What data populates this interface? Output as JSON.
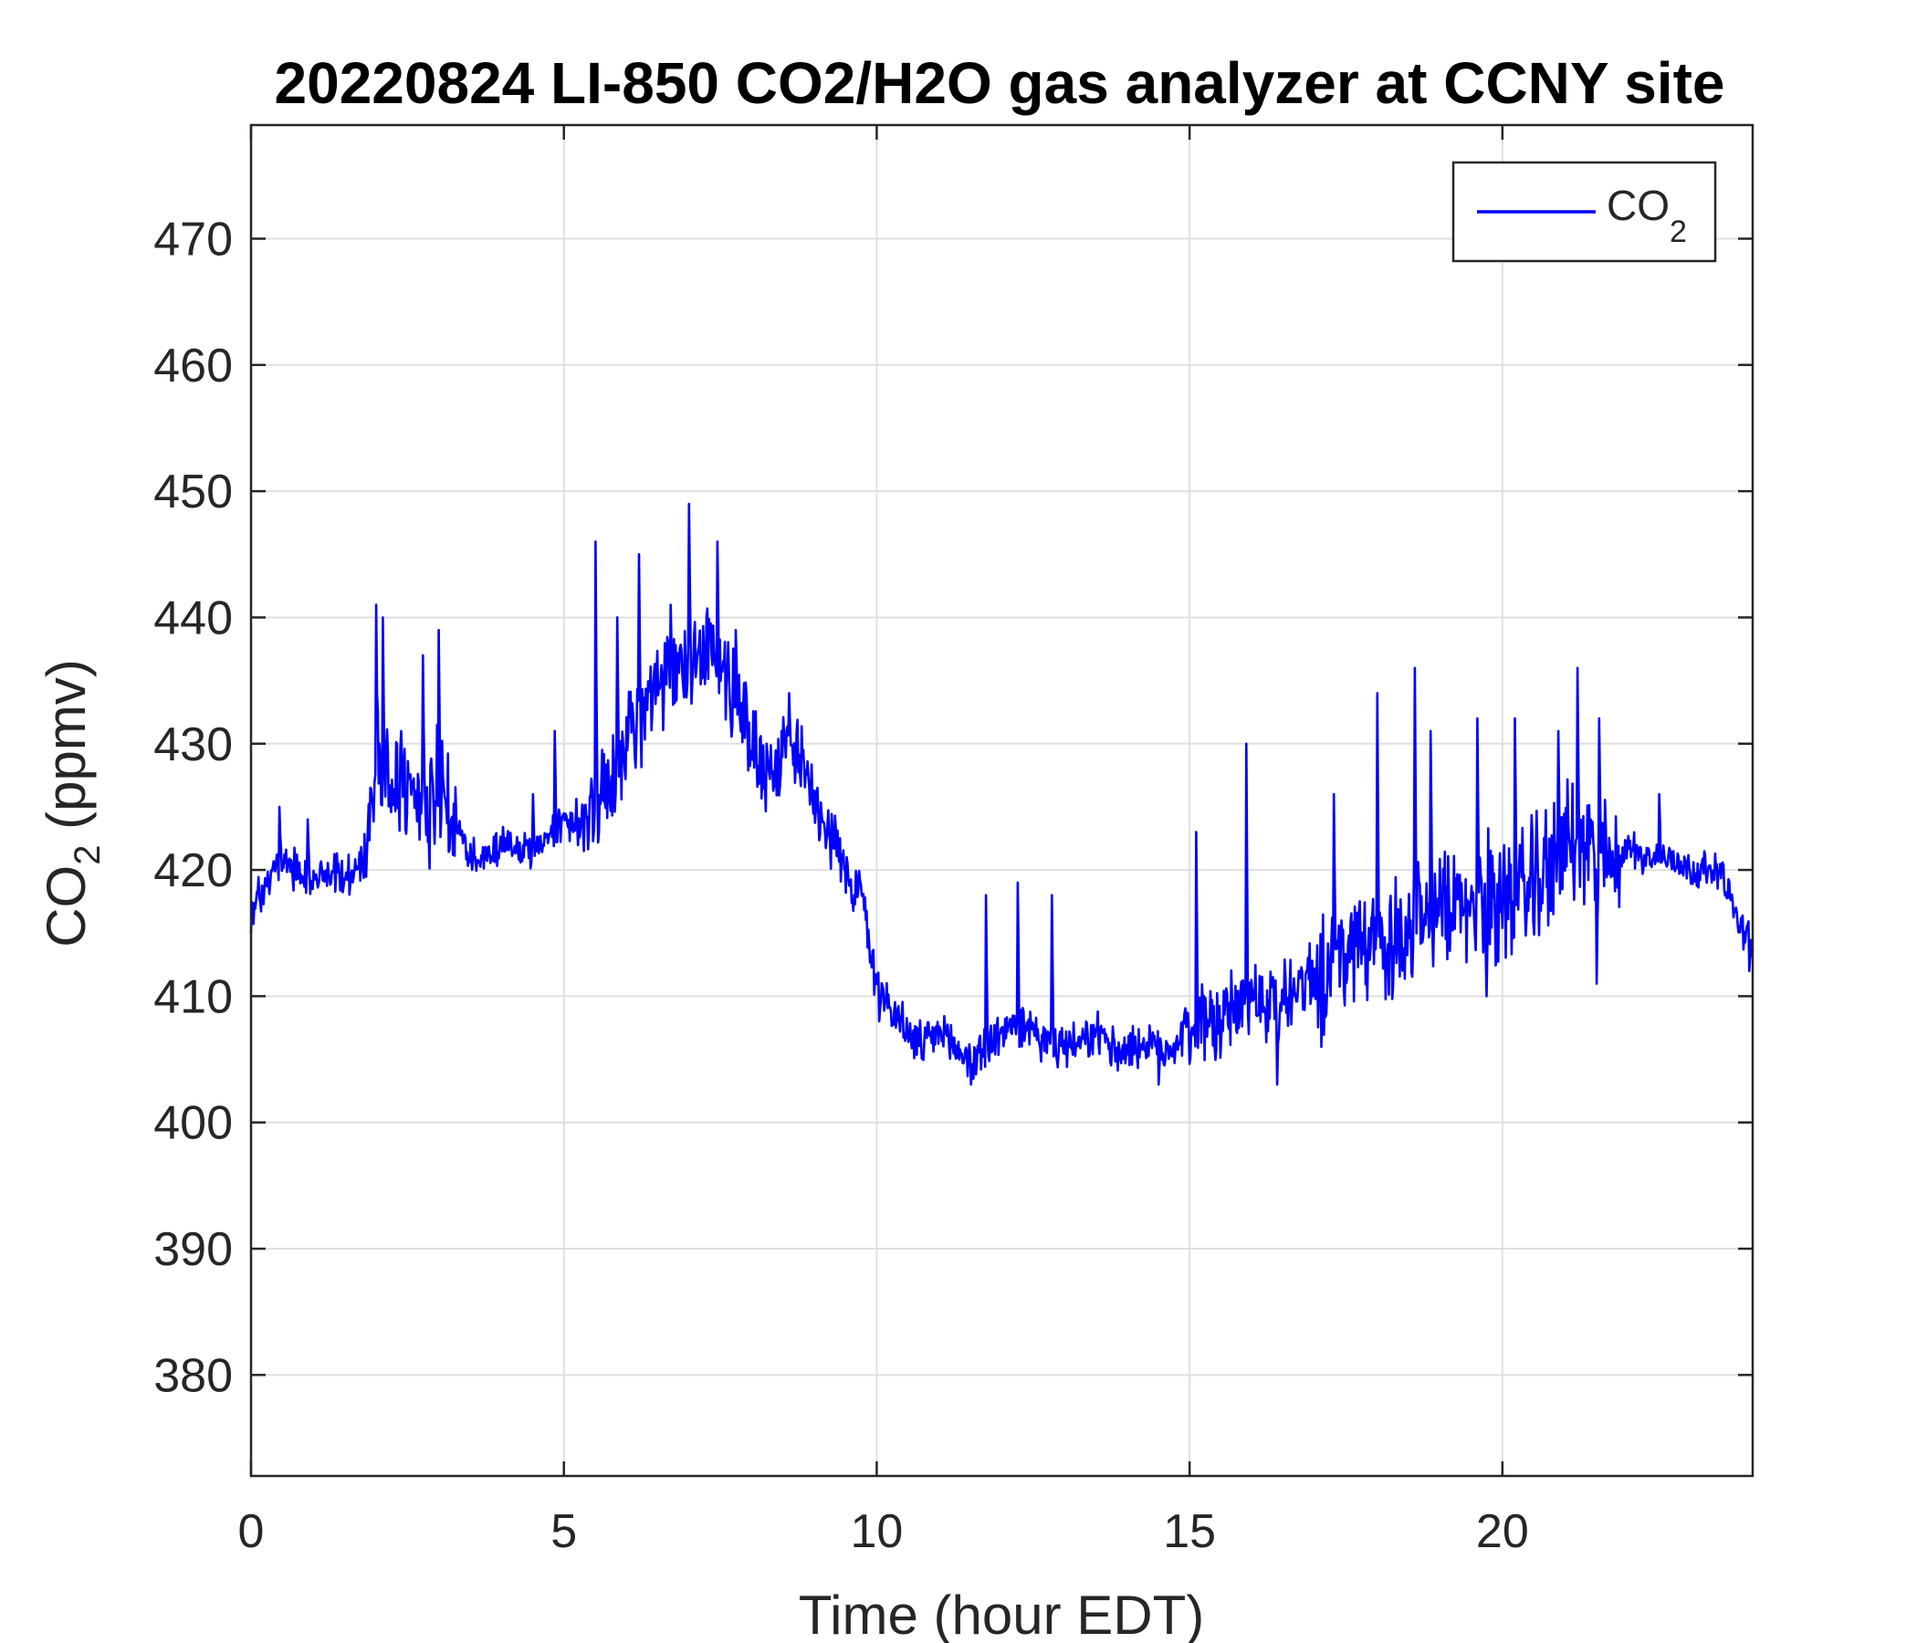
{
  "chart_data": {
    "type": "line",
    "title": "20220824 LI-850 CO2/H2O gas analyzer at CCNY site",
    "xlabel": "Time (hour EDT)",
    "ylabel": {
      "main": "CO",
      "sub": "2",
      "suffix": " (ppmv)"
    },
    "xlim": [
      0,
      24
    ],
    "ylim": [
      372,
      479
    ],
    "xticks": [
      0,
      5,
      10,
      15,
      20
    ],
    "yticks": [
      380,
      390,
      400,
      410,
      420,
      430,
      440,
      450,
      460,
      470
    ],
    "grid": true,
    "legend": {
      "position": "top-right",
      "entries": [
        {
          "main": "CO",
          "sub": "2"
        }
      ]
    },
    "series": [
      {
        "name": "CO2",
        "color": "#0000ff",
        "x": [
          0,
          0.25,
          0.5,
          0.75,
          1,
          1.25,
          1.5,
          1.75,
          2,
          2.25,
          2.5,
          2.75,
          3,
          3.25,
          3.5,
          3.75,
          4,
          4.25,
          4.5,
          4.75,
          5,
          5.25,
          5.5,
          5.75,
          6,
          6.25,
          6.5,
          6.75,
          7,
          7.25,
          7.5,
          7.75,
          8,
          8.25,
          8.5,
          8.75,
          9,
          9.25,
          9.5,
          9.75,
          10,
          10.25,
          10.5,
          10.75,
          11,
          11.25,
          11.5,
          11.75,
          12,
          12.25,
          12.5,
          12.75,
          13,
          13.25,
          13.5,
          13.75,
          14,
          14.25,
          14.5,
          14.75,
          15,
          15.25,
          15.5,
          15.75,
          16,
          16.25,
          16.5,
          16.75,
          17,
          17.25,
          17.5,
          17.75,
          18,
          18.25,
          18.5,
          18.75,
          19,
          19.25,
          19.5,
          19.75,
          20,
          20.25,
          20.5,
          20.75,
          21,
          21.25,
          21.5,
          21.75,
          22,
          22.25,
          22.5,
          22.75,
          23,
          23.25,
          23.5,
          23.75,
          24
        ],
        "y": [
          416,
          419,
          421,
          420,
          419,
          420,
          419,
          420,
          427,
          428,
          426,
          425,
          426,
          424,
          421,
          421,
          422,
          422,
          421,
          423,
          424,
          423,
          425,
          427,
          430,
          432,
          434,
          435,
          437,
          438,
          436,
          434,
          430,
          428,
          429,
          430,
          426,
          423,
          420,
          418,
          411,
          409,
          407,
          406,
          407,
          406,
          405,
          406,
          407,
          408,
          407,
          406,
          406,
          406,
          407,
          406,
          406,
          406,
          406,
          406,
          408,
          408,
          408,
          409,
          410,
          409,
          410,
          411,
          412,
          413,
          413,
          413,
          414,
          415,
          415,
          416,
          416,
          417,
          417,
          418,
          418,
          418,
          419,
          420,
          422,
          422,
          421,
          420,
          422,
          421,
          421,
          421,
          420,
          420,
          420,
          416,
          414
        ],
        "peaks": [
          [
            0.45,
            425
          ],
          [
            0.9,
            424
          ],
          [
            2.0,
            441
          ],
          [
            2.1,
            440
          ],
          [
            2.4,
            431
          ],
          [
            2.75,
            437
          ],
          [
            3.0,
            439
          ],
          [
            3.2,
            424
          ],
          [
            4.5,
            426
          ],
          [
            4.85,
            431
          ],
          [
            5.5,
            446
          ],
          [
            5.85,
            440
          ],
          [
            6.2,
            445
          ],
          [
            6.7,
            441
          ],
          [
            7.0,
            449
          ],
          [
            7.45,
            446
          ],
          [
            7.75,
            439
          ],
          [
            8.6,
            434
          ],
          [
            11.75,
            418
          ],
          [
            12.25,
            419
          ],
          [
            12.8,
            418
          ],
          [
            15.1,
            423
          ],
          [
            15.9,
            430
          ],
          [
            17.3,
            426
          ],
          [
            18.0,
            434
          ],
          [
            18.6,
            436
          ],
          [
            18.85,
            431
          ],
          [
            19.6,
            432
          ],
          [
            20.2,
            432
          ],
          [
            20.9,
            431
          ],
          [
            21.2,
            436
          ],
          [
            21.55,
            432
          ],
          [
            22.5,
            426
          ],
          [
            16.4,
            403
          ],
          [
            14.5,
            403
          ],
          [
            11.5,
            403
          ],
          [
            19.75,
            410
          ],
          [
            21.5,
            411
          ],
          [
            17.1,
            406
          ],
          [
            23.95,
            412
          ]
        ]
      }
    ]
  }
}
